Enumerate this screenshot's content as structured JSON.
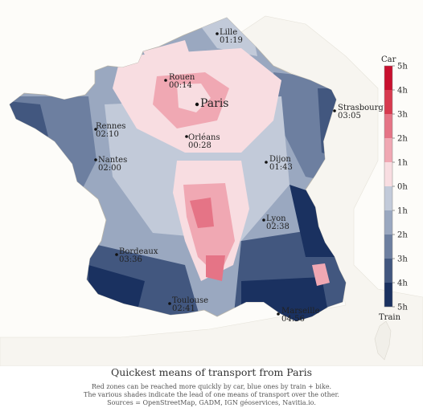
{
  "title": "Quickest means of transport from Paris",
  "subtitle_lines": [
    "Red zones can be reached more quickly by car, blue ones by train + bike.",
    "The various shades indicate the lead of one means of transport over the other.",
    "Sources = OpenStreetMap, GADM, IGN géoservices, Navitia.io."
  ],
  "colors": {
    "car_dark": "#c0102a",
    "car_light": "#f6d9de",
    "train_light": "#c4ccdb",
    "train_dark": "#0e2550",
    "background": "#fdfcf9"
  },
  "legend": {
    "top_label": "Car",
    "bottom_label": "Train",
    "ticks": [
      "5h",
      "4h",
      "3h",
      "2h",
      "1h",
      "0h",
      "1h",
      "2h",
      "3h",
      "4h",
      "5h"
    ],
    "bins": [
      {
        "mode": "car",
        "from_hours": 4,
        "to_hours": 5,
        "color": "#c8102e"
      },
      {
        "mode": "car",
        "from_hours": 3,
        "to_hours": 4,
        "color": "#d73a4f"
      },
      {
        "mode": "car",
        "from_hours": 2,
        "to_hours": 3,
        "color": "#e57486"
      },
      {
        "mode": "car",
        "from_hours": 1,
        "to_hours": 2,
        "color": "#f0a8b3"
      },
      {
        "mode": "car",
        "from_hours": 0,
        "to_hours": 1,
        "color": "#f8dde1"
      },
      {
        "mode": "train",
        "from_hours": 0,
        "to_hours": 1,
        "color": "#c2cad9"
      },
      {
        "mode": "train",
        "from_hours": 1,
        "to_hours": 2,
        "color": "#9aa8c0"
      },
      {
        "mode": "train",
        "from_hours": 2,
        "to_hours": 3,
        "color": "#6d7fa0"
      },
      {
        "mode": "train",
        "from_hours": 3,
        "to_hours": 4,
        "color": "#42577f"
      },
      {
        "mode": "train",
        "from_hours": 4,
        "to_hours": 5,
        "color": "#1a3160"
      }
    ]
  },
  "cities": [
    {
      "id": "lille",
      "name": "Lille",
      "time": "01:19"
    },
    {
      "id": "rouen",
      "name": "Rouen",
      "time": "00:14"
    },
    {
      "id": "paris",
      "name": "Paris",
      "time": ""
    },
    {
      "id": "strasbourg",
      "name": "Strasbourg",
      "time": "03:05"
    },
    {
      "id": "rennes",
      "name": "Rennes",
      "time": "02:10"
    },
    {
      "id": "orleans",
      "name": "Orléans",
      "time": "00:28"
    },
    {
      "id": "nantes",
      "name": "Nantes",
      "time": "02:00"
    },
    {
      "id": "dijon",
      "name": "Dijon",
      "time": "01:43"
    },
    {
      "id": "lyon",
      "name": "Lyon",
      "time": "02:38"
    },
    {
      "id": "bordeaux",
      "name": "Bordeaux",
      "time": "03:36"
    },
    {
      "id": "toulouse",
      "name": "Toulouse",
      "time": "02:41"
    },
    {
      "id": "marseille",
      "name": "Marseille",
      "time": "04:56"
    }
  ]
}
